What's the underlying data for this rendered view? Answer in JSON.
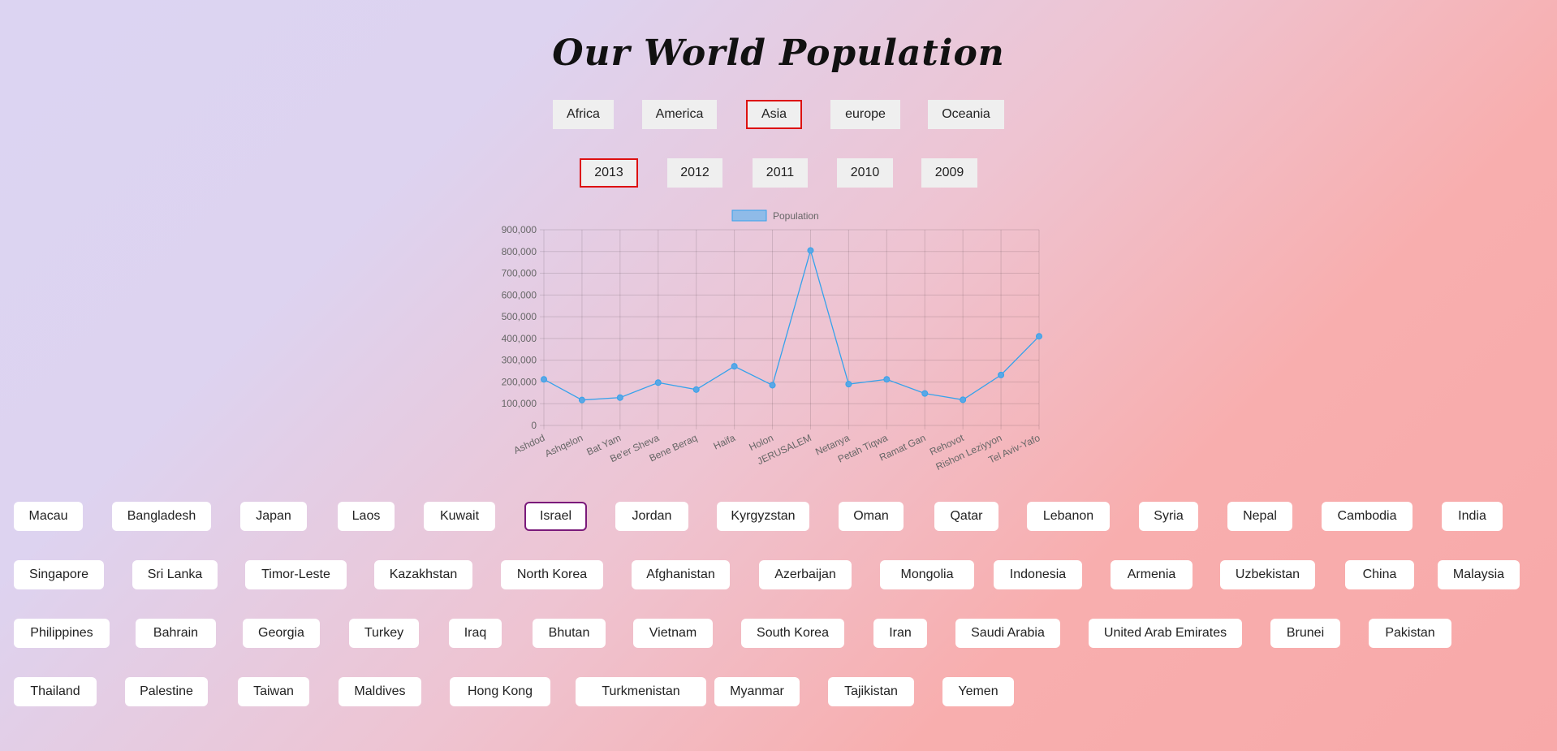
{
  "page": {
    "title": "Our World Population"
  },
  "continents": [
    {
      "label": "Africa",
      "active": false
    },
    {
      "label": "America",
      "active": false
    },
    {
      "label": "Asia",
      "active": true
    },
    {
      "label": "europe",
      "active": false
    },
    {
      "label": "Oceania",
      "active": false
    }
  ],
  "years": [
    {
      "label": "2013",
      "active": true
    },
    {
      "label": "2012",
      "active": false
    },
    {
      "label": "2011",
      "active": false
    },
    {
      "label": "2010",
      "active": false
    },
    {
      "label": "2009",
      "active": false
    }
  ],
  "colors": {
    "active_border": "#dd1111",
    "country_active_border": "#7a1a7a",
    "series": "#36a2eb"
  },
  "chart_data": {
    "type": "line",
    "categories": [
      "Ashdod",
      "Ashqelon",
      "Bat Yam",
      "Be'er Sheva",
      "Bene Beraq",
      "Haifa",
      "Holon",
      "JERUSALEM",
      "Netanya",
      "Petah Tiqwa",
      "Ramat Gan",
      "Rehovot",
      "Rishon Leziyyon",
      "Tel Aviv-Yafo"
    ],
    "series": [
      {
        "name": "Population",
        "values": [
          212000,
          117000,
          128000,
          197000,
          165000,
          272000,
          185000,
          805000,
          190000,
          212000,
          147000,
          118000,
          232000,
          410000
        ]
      }
    ],
    "ylim": [
      0,
      900000
    ],
    "yticks": [
      "0",
      "100,000",
      "200,000",
      "300,000",
      "400,000",
      "500,000",
      "600,000",
      "700,000",
      "800,000",
      "900,000"
    ],
    "legend_position": "top",
    "grid": true
  },
  "countries": [
    [
      "Macau",
      "Bangladesh",
      "Japan",
      "Laos",
      "Kuwait",
      "Israel",
      "Jordan",
      "Kyrgyzstan",
      "Oman",
      "Qatar",
      "Lebanon",
      "Syria",
      "Nepal",
      "Cambodia",
      "India"
    ],
    [
      "Singapore",
      "Sri Lanka",
      "Timor-Leste",
      "Kazakhstan",
      "North Korea",
      "Afghanistan",
      "Azerbaijan",
      "Mongolia",
      "Indonesia",
      "Armenia",
      "Uzbekistan",
      "China",
      "Malaysia"
    ],
    [
      "Philippines",
      "Bahrain",
      "Georgia",
      "Turkey",
      "Iraq",
      "Bhutan",
      "Vietnam",
      "South Korea",
      "Iran",
      "Saudi Arabia",
      "United Arab Emirates",
      "Brunei",
      "Pakistan"
    ],
    [
      "Thailand",
      "Palestine",
      "Taiwan",
      "Maldives",
      "Hong Kong",
      "Turkmenistan",
      "Myanmar",
      "Tajikistan",
      "Yemen"
    ]
  ],
  "selected_country": "Israel"
}
